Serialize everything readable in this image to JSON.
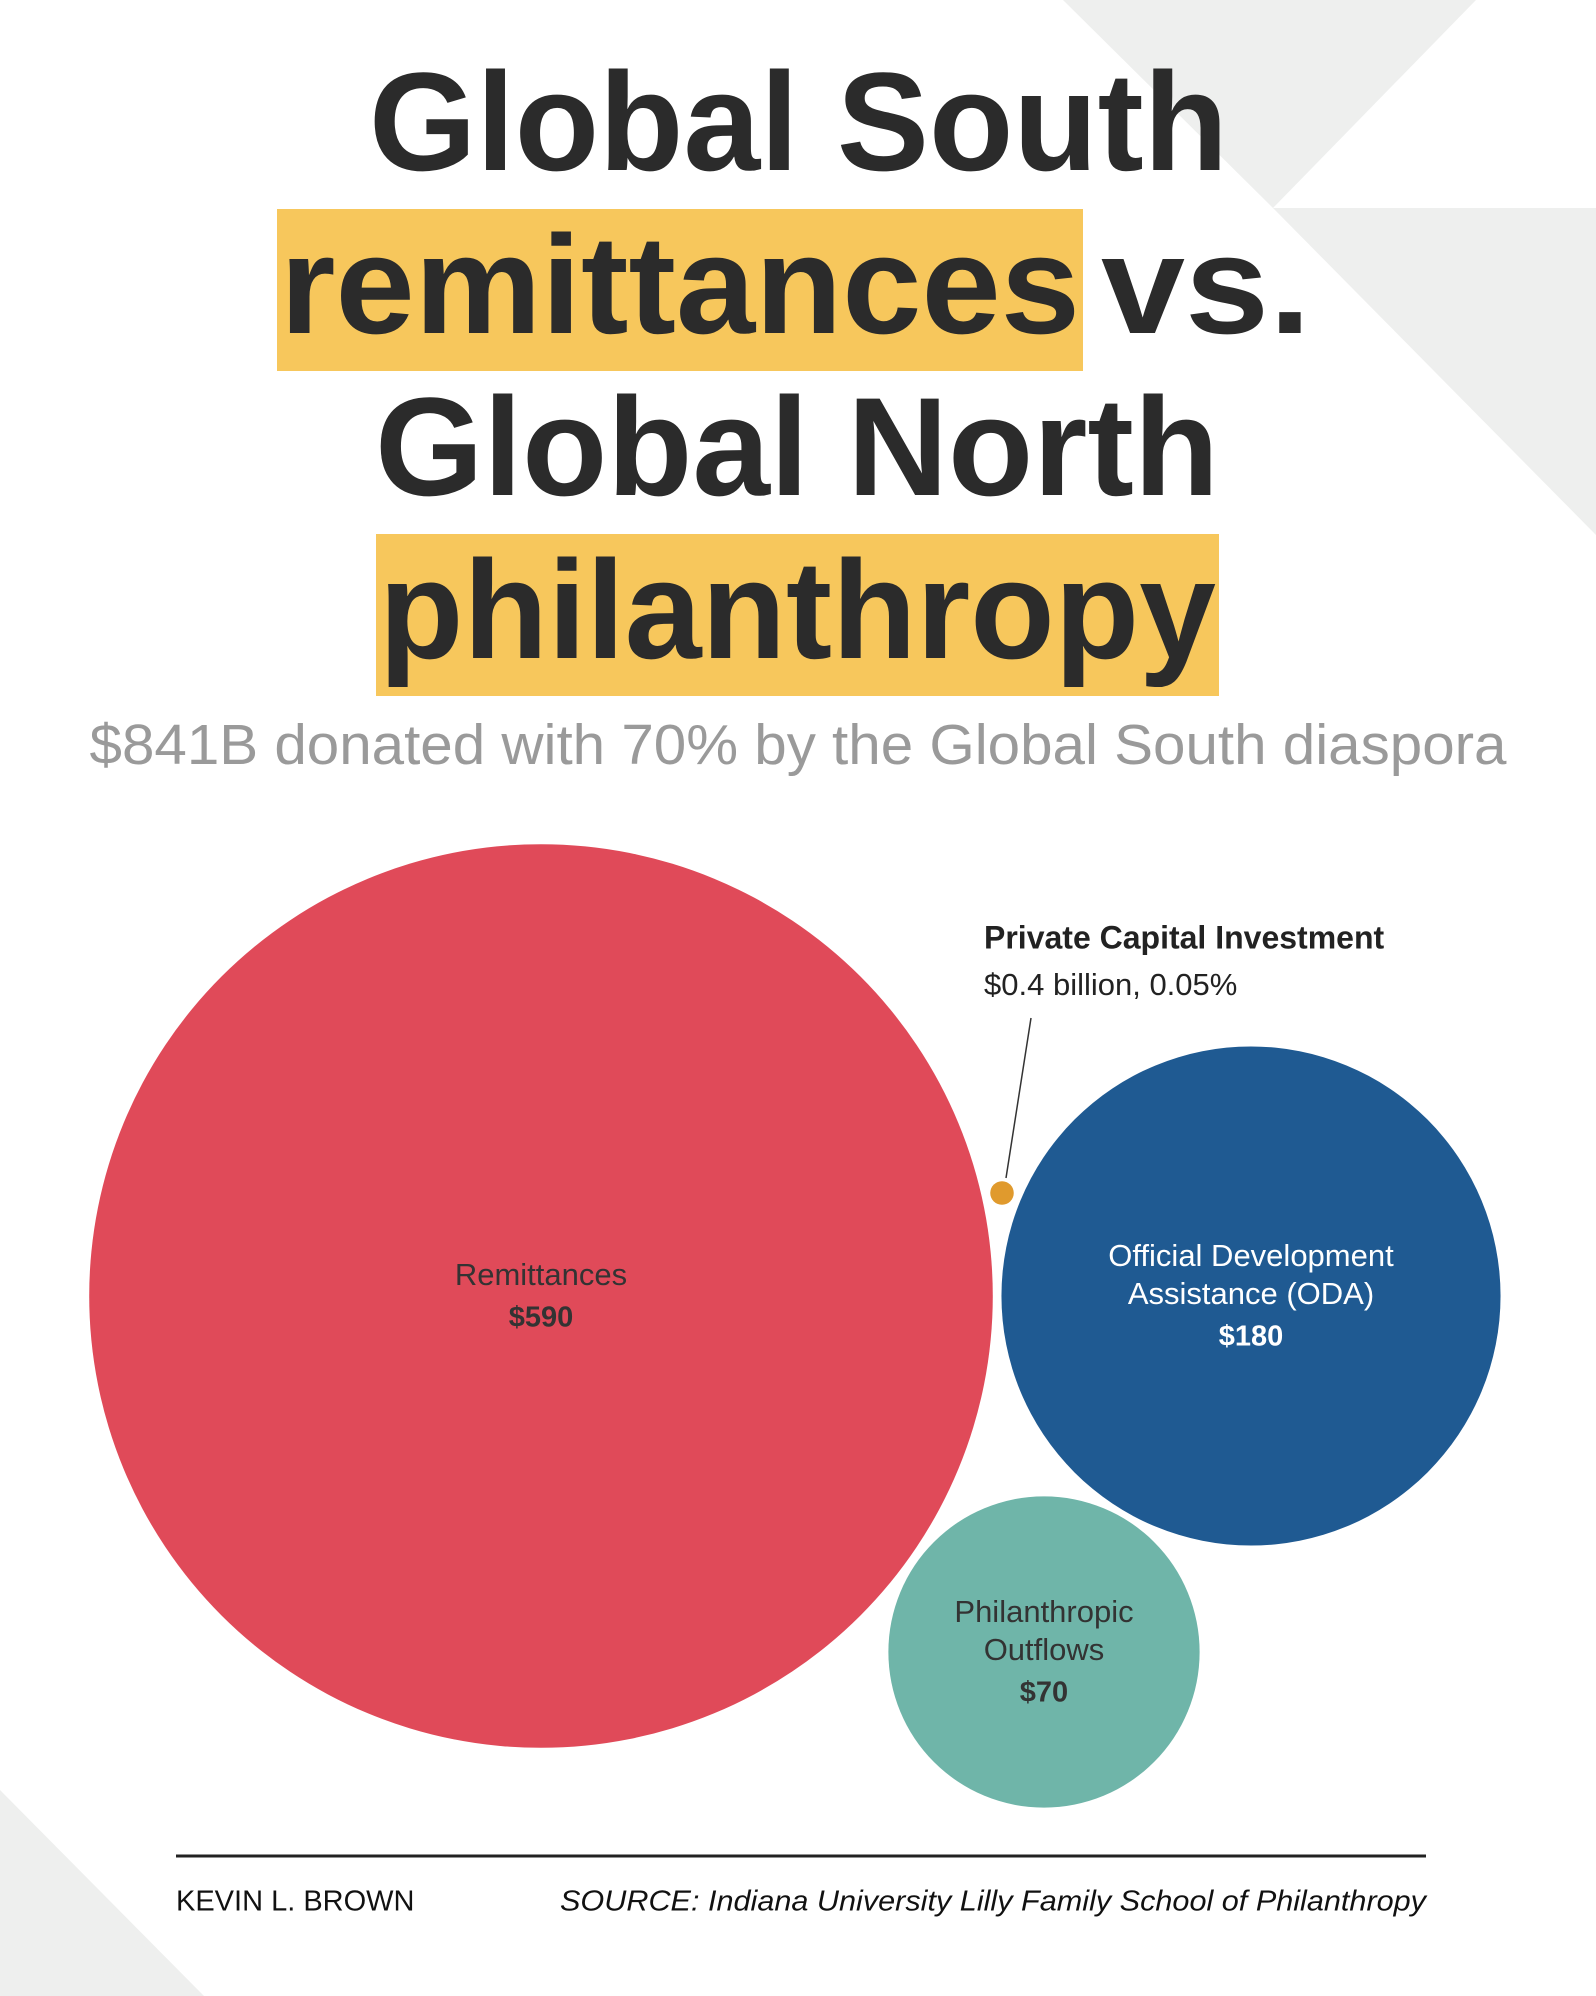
{
  "chart_data": {
    "type": "bubble",
    "title_lines": [
      [
        {
          "text": "Global South",
          "highlight": false
        }
      ],
      [
        {
          "text": "remittances",
          "highlight": true
        },
        {
          "text": "vs.",
          "highlight": false
        }
      ],
      [
        {
          "text": "Global North",
          "highlight": false
        }
      ],
      [
        {
          "text": "philanthropy",
          "highlight": true
        }
      ]
    ],
    "highlight_color": "#f7c75c",
    "subtitle": "$841B donated with 70% by the Global South diaspora",
    "categories": [
      [
        "Remittances"
      ],
      [
        "Official Development",
        "Assistance (ODA)"
      ],
      [
        "Philanthropic",
        "Outflows"
      ],
      [
        "Private Capital Investment"
      ]
    ],
    "values": [
      590,
      180,
      70,
      0.4
    ],
    "value_labels": [
      "$590",
      "$180",
      "$70",
      "$0.4 billion, 0.05%"
    ],
    "colors": [
      "#e04a59",
      "#1f5a92",
      "#6fb5a9",
      "#e09a2d"
    ],
    "author": "KEVIN L. BROWN",
    "source": "SOURCE: Indiana University Lilly Family School of Philanthropy"
  }
}
